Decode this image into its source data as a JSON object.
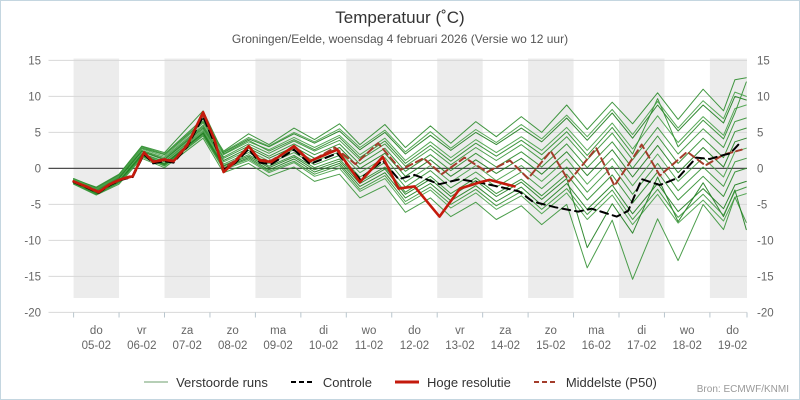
{
  "header": {
    "title": "Temperatuur (˚C)",
    "subtitle": "Groningen/Eelde, woensdag 4 februari 2026 (Versie wo 12 uur)"
  },
  "source_label": "Bron: ECMWF/KNMI",
  "legend": [
    {
      "label": "Verstoorde runs",
      "color": "#9dbf9d",
      "dash": "",
      "width": 1.5
    },
    {
      "label": "Controle",
      "color": "#000000",
      "dash": "5 3",
      "width": 2
    },
    {
      "label": "Hoge resolutie",
      "color": "#c41a0c",
      "dash": "",
      "width": 3
    },
    {
      "label": "Middelste (P50)",
      "color": "#a33d2b",
      "dash": "5 3",
      "width": 2
    }
  ],
  "chart_data": {
    "type": "line",
    "title": "Temperatuur (˚C)",
    "ylabel": "°C",
    "ylim": [
      -20,
      15
    ],
    "y_ticks": [
      15,
      10,
      5,
      0,
      -5,
      -10,
      -15,
      -20
    ],
    "grid": true,
    "legend_position": "bottom",
    "x_unit": "days, 0 = 2026-02-05 00:00",
    "x_categories": [
      {
        "dow": "do",
        "date": "05-02"
      },
      {
        "dow": "vr",
        "date": "06-02"
      },
      {
        "dow": "za",
        "date": "07-02"
      },
      {
        "dow": "zo",
        "date": "08-02"
      },
      {
        "dow": "ma",
        "date": "09-02"
      },
      {
        "dow": "di",
        "date": "10-02"
      },
      {
        "dow": "wo",
        "date": "11-02"
      },
      {
        "dow": "do",
        "date": "12-02"
      },
      {
        "dow": "vr",
        "date": "13-02"
      },
      {
        "dow": "za",
        "date": "14-02"
      },
      {
        "dow": "zo",
        "date": "15-02"
      },
      {
        "dow": "ma",
        "date": "16-02"
      },
      {
        "dow": "di",
        "date": "17-02"
      },
      {
        "dow": "wo",
        "date": "18-02"
      },
      {
        "dow": "do",
        "date": "19-02"
      }
    ],
    "series": {
      "hoge_resolutie": {
        "name": "Hoge resolutie",
        "color": "#c41a0c",
        "width": 2.6,
        "dash": "",
        "points": [
          [
            0,
            -1.8
          ],
          [
            0.3,
            -2.6
          ],
          [
            0.55,
            -3.3
          ],
          [
            0.8,
            -2.2
          ],
          [
            1.05,
            -1.5
          ],
          [
            1.3,
            -1.1
          ],
          [
            1.55,
            2.2
          ],
          [
            1.75,
            0.9
          ],
          [
            2.0,
            1.2
          ],
          [
            2.2,
            1.0
          ],
          [
            2.5,
            3.2
          ],
          [
            2.85,
            7.8
          ],
          [
            3.1,
            4.0
          ],
          [
            3.3,
            -0.5
          ],
          [
            3.55,
            0.9
          ],
          [
            3.85,
            3.1
          ],
          [
            4.1,
            1.1
          ],
          [
            4.35,
            0.9
          ],
          [
            4.85,
            3.1
          ],
          [
            5.2,
            1.0
          ],
          [
            5.8,
            2.6
          ],
          [
            6.3,
            -1.9
          ],
          [
            6.8,
            1.6
          ],
          [
            7.15,
            -2.8
          ],
          [
            7.5,
            -2.5
          ],
          [
            8.05,
            -6.7
          ],
          [
            8.5,
            -2.8
          ],
          [
            8.95,
            -1.9
          ],
          [
            9.15,
            -1.6
          ],
          [
            9.7,
            -2.5
          ]
        ]
      },
      "controle": {
        "name": "Controle",
        "color": "#000000",
        "width": 2,
        "dash": "8 5",
        "points": [
          [
            0,
            -1.9
          ],
          [
            0.3,
            -2.7
          ],
          [
            0.55,
            -3.4
          ],
          [
            0.8,
            -2.3
          ],
          [
            1.05,
            -1.6
          ],
          [
            1.3,
            -1.2
          ],
          [
            1.55,
            2.0
          ],
          [
            1.75,
            0.7
          ],
          [
            2.0,
            1.0
          ],
          [
            2.2,
            0.8
          ],
          [
            2.5,
            3.0
          ],
          [
            2.85,
            7.2
          ],
          [
            3.1,
            3.5
          ],
          [
            3.3,
            -0.2
          ],
          [
            3.55,
            0.7
          ],
          [
            3.85,
            2.7
          ],
          [
            4.1,
            0.8
          ],
          [
            4.35,
            0.6
          ],
          [
            4.85,
            2.6
          ],
          [
            5.2,
            0.6
          ],
          [
            5.8,
            2.1
          ],
          [
            6.3,
            -1.5
          ],
          [
            6.8,
            1.1
          ],
          [
            7.15,
            -1.5
          ],
          [
            7.5,
            -0.9
          ],
          [
            8.05,
            -2.2
          ],
          [
            8.5,
            -1.5
          ],
          [
            8.95,
            -2.0
          ],
          [
            9.4,
            -2.6
          ],
          [
            9.8,
            -3.2
          ],
          [
            10.1,
            -4.6
          ],
          [
            10.6,
            -5.4
          ],
          [
            11.1,
            -6.0
          ],
          [
            11.4,
            -5.6
          ],
          [
            11.7,
            -6.2
          ],
          [
            11.95,
            -6.7
          ],
          [
            12.2,
            -5.9
          ],
          [
            12.5,
            -1.5
          ],
          [
            12.9,
            -2.3
          ],
          [
            13.3,
            -1.3
          ],
          [
            13.7,
            1.5
          ],
          [
            14.0,
            1.3
          ],
          [
            14.2,
            1.7
          ],
          [
            14.45,
            2.1
          ],
          [
            14.7,
            3.8
          ]
        ]
      },
      "middelste_p50": {
        "name": "Middelste (P50)",
        "color": "#a33d2b",
        "width": 2,
        "dash": "7 4",
        "points": [
          [
            0,
            -1.8
          ],
          [
            0.3,
            -2.5
          ],
          [
            0.55,
            -3.2
          ],
          [
            0.8,
            -2.1
          ],
          [
            1.05,
            -1.4
          ],
          [
            1.3,
            -1.0
          ],
          [
            1.55,
            2.3
          ],
          [
            1.75,
            1.0
          ],
          [
            2.0,
            1.3
          ],
          [
            2.2,
            1.1
          ],
          [
            2.5,
            3.4
          ],
          [
            2.85,
            7.4
          ],
          [
            3.1,
            3.8
          ],
          [
            3.3,
            0.0
          ],
          [
            3.55,
            1.1
          ],
          [
            3.85,
            3.0
          ],
          [
            4.1,
            1.2
          ],
          [
            4.35,
            1.1
          ],
          [
            4.85,
            2.9
          ],
          [
            5.2,
            0.9
          ],
          [
            5.75,
            2.9
          ],
          [
            6.2,
            0.6
          ],
          [
            6.7,
            3.5
          ],
          [
            7.2,
            -0.2
          ],
          [
            7.7,
            1.4
          ],
          [
            8.1,
            -0.8
          ],
          [
            8.6,
            1.5
          ],
          [
            9.1,
            -0.5
          ],
          [
            9.6,
            1.1
          ],
          [
            10.0,
            -1.4
          ],
          [
            10.5,
            2.4
          ],
          [
            10.9,
            -1.8
          ],
          [
            11.5,
            2.8
          ],
          [
            11.9,
            -2.4
          ],
          [
            12.5,
            3.3
          ],
          [
            12.9,
            -1.0
          ],
          [
            13.5,
            2.3
          ],
          [
            13.9,
            0.4
          ],
          [
            14.3,
            1.9
          ],
          [
            14.7,
            2.6
          ]
        ]
      },
      "verstoorde_runs": {
        "name": "Verstoorde runs",
        "colors": [
          "#2c8c2c",
          "#1e7d1e",
          "#47a147",
          "#379337"
        ],
        "width": 1,
        "days": [
          0,
          0.5,
          1.0,
          1.5,
          2.0,
          2.85,
          3.3,
          3.85,
          4.3,
          4.85,
          5.3,
          5.85,
          6.3,
          6.85,
          7.3,
          7.85,
          8.3,
          8.85,
          9.3,
          9.85,
          10.3,
          10.85,
          11.3,
          11.85,
          12.3,
          12.85,
          13.3,
          13.85,
          14.3,
          14.55,
          14.8
        ],
        "members": [
          [
            -1.4,
            -2.7,
            -0.9,
            3.0,
            2.0,
            6.9,
            2.4,
            4.8,
            3.3,
            5.6,
            4.0,
            6.2,
            3.3,
            6.1,
            2.9,
            5.9,
            3.5,
            6.5,
            4.4,
            7.2,
            5.0,
            8.8,
            5.4,
            9.2,
            6.2,
            10.5,
            6.8,
            11.0,
            8.0,
            12.3,
            12.6
          ],
          [
            -1.5,
            -2.8,
            -1.0,
            2.8,
            1.9,
            6.5,
            2.2,
            4.1,
            3.0,
            4.8,
            3.5,
            5.2,
            2.6,
            5.0,
            2.0,
            4.6,
            2.5,
            5.0,
            3.3,
            5.6,
            3.7,
            7.0,
            3.9,
            7.7,
            4.2,
            8.8,
            5.2,
            8.8,
            6.3,
            10.0,
            9.5
          ],
          [
            -1.6,
            -2.9,
            -1.1,
            2.7,
            1.7,
            6.3,
            1.9,
            3.7,
            2.6,
            4.3,
            2.9,
            4.6,
            1.9,
            4.2,
            1.1,
            3.7,
            1.5,
            4.0,
            2.2,
            4.4,
            2.5,
            5.7,
            2.5,
            6.3,
            2.7,
            7.3,
            3.6,
            7.2,
            4.6,
            8.3,
            8.8
          ],
          [
            -1.7,
            -3.0,
            -1.2,
            2.5,
            1.5,
            6.0,
            1.6,
            3.4,
            2.1,
            3.8,
            2.4,
            3.9,
            1.2,
            3.4,
            0.3,
            2.7,
            0.5,
            2.9,
            1.1,
            3.3,
            1.2,
            4.4,
            1.2,
            4.9,
            1.2,
            5.7,
            2.0,
            5.5,
            2.9,
            6.5,
            7.0
          ],
          [
            -1.7,
            -3.1,
            -1.3,
            2.4,
            1.3,
            5.8,
            1.4,
            3.1,
            1.7,
            3.4,
            1.9,
            3.4,
            0.6,
            2.8,
            -0.4,
            1.9,
            -0.3,
            2.1,
            0.2,
            2.3,
            0.2,
            3.4,
            0.1,
            3.7,
            0.0,
            4.5,
            0.7,
            4.2,
            1.5,
            5.1,
            5.6
          ],
          [
            -1.8,
            -3.2,
            -1.4,
            2.3,
            1.2,
            5.6,
            1.1,
            2.8,
            1.4,
            3.0,
            1.4,
            2.9,
            0.0,
            2.1,
            -1.1,
            1.2,
            -1.1,
            1.2,
            -0.7,
            1.4,
            -0.8,
            2.3,
            -1.0,
            2.6,
            -1.2,
            3.2,
            -0.6,
            2.9,
            0.2,
            3.7,
            4.2
          ],
          [
            -1.8,
            -3.2,
            -1.6,
            2.1,
            1.0,
            5.4,
            0.9,
            2.5,
            1.0,
            2.6,
            1.0,
            2.3,
            -0.6,
            1.5,
            -1.9,
            0.4,
            -1.9,
            0.4,
            -1.7,
            0.4,
            -1.8,
            1.3,
            -2.2,
            1.4,
            -2.4,
            2.0,
            -1.8,
            1.5,
            -1.2,
            2.3,
            2.8
          ],
          [
            -1.9,
            -3.3,
            -1.7,
            2.0,
            0.9,
            5.2,
            0.6,
            2.2,
            0.7,
            2.2,
            0.5,
            1.8,
            -1.2,
            0.8,
            -2.6,
            -0.3,
            -2.7,
            -0.5,
            -2.6,
            -0.5,
            -2.8,
            0.2,
            -3.3,
            0.3,
            -3.6,
            0.7,
            -3.1,
            0.2,
            -2.5,
            0.9,
            1.4
          ],
          [
            -2.0,
            -3.4,
            -1.8,
            1.9,
            0.7,
            5.0,
            0.4,
            1.9,
            0.3,
            1.8,
            0.1,
            1.3,
            -1.8,
            0.2,
            -3.3,
            -1.1,
            -3.5,
            -1.3,
            -3.5,
            -1.5,
            -3.8,
            -0.8,
            -4.4,
            -0.9,
            -4.8,
            -0.5,
            -4.4,
            -1.1,
            -3.9,
            -0.5,
            0.0
          ],
          [
            -2.0,
            -3.5,
            -1.9,
            1.8,
            0.5,
            4.8,
            0.1,
            1.5,
            -0.2,
            1.3,
            -0.5,
            0.7,
            -2.5,
            -0.6,
            -4.1,
            -2.1,
            -4.5,
            -2.4,
            -4.6,
            -2.6,
            -5.1,
            -2.1,
            -5.7,
            -2.3,
            -6.3,
            -2.1,
            -6.0,
            -2.8,
            -5.6,
            -2.3,
            -1.8
          ],
          [
            -2.1,
            -3.6,
            -2.0,
            1.6,
            0.3,
            4.5,
            -0.2,
            1.1,
            -0.6,
            0.8,
            -1.1,
            0.0,
            -3.2,
            -1.4,
            -5.0,
            -3.0,
            -5.5,
            -3.4,
            -5.7,
            -3.8,
            -6.3,
            -3.4,
            -7.1,
            -3.7,
            -7.8,
            -3.6,
            -7.6,
            -4.4,
            -7.3,
            -4.0,
            -3.5
          ],
          [
            -2.2,
            -3.7,
            -2.2,
            1.4,
            0.1,
            4.2,
            -0.6,
            0.7,
            -1.1,
            0.2,
            -1.8,
            -0.8,
            -4.1,
            -2.4,
            -6.1,
            -4.1,
            -6.7,
            -4.7,
            -7.1,
            -5.2,
            -7.8,
            -5.0,
            -13.8,
            -7.2,
            -15.4,
            -7.0,
            -12.8,
            -5.0,
            -8.5,
            -4.0,
            -7.5
          ],
          [
            -1.5,
            -2.6,
            -0.8,
            3.1,
            2.2,
            8.0,
            2.0,
            3.9,
            2.4,
            4.0,
            2.6,
            4.3,
            1.5,
            3.8,
            0.7,
            3.2,
            1.0,
            3.5,
            1.7,
            3.9,
            1.9,
            5.1,
            1.8,
            5.7,
            2.0,
            9.7,
            3.0,
            6.7,
            4.1,
            7.7,
            12.0
          ],
          [
            -1.9,
            -3.4,
            -1.8,
            1.8,
            0.6,
            4.9,
            0.3,
            1.7,
            0.1,
            1.6,
            -0.2,
            1.0,
            -2.1,
            -0.1,
            -3.6,
            -1.5,
            -3.9,
            -1.7,
            -3.9,
            -1.9,
            -4.3,
            -1.4,
            -11.0,
            -4.9,
            -9.0,
            -1.2,
            -7.4,
            -2.0,
            -6.7,
            -3.0,
            -8.5
          ],
          [
            -1.5,
            -2.8,
            -1.0,
            2.9,
            2.0,
            6.6,
            2.3,
            4.3,
            3.1,
            5.0,
            3.7,
            5.5,
            2.9,
            5.3,
            2.3,
            5.1,
            2.8,
            5.4,
            3.6,
            6.1,
            4.1,
            7.4,
            4.4,
            8.2,
            4.7,
            9.3,
            5.6,
            9.4,
            6.9,
            10.6,
            10.0
          ],
          [
            -2.1,
            -3.6,
            -2.0,
            1.7,
            0.4,
            4.6,
            0.0,
            1.3,
            -0.4,
            1.0,
            -0.8,
            0.4,
            -2.9,
            -1.0,
            -4.6,
            -2.6,
            -5.0,
            -2.9,
            -5.2,
            -3.2,
            -5.7,
            -2.8,
            -6.4,
            -3.0,
            -7.1,
            -2.9,
            -6.8,
            -3.6,
            -6.5,
            -3.2,
            -2.6
          ]
        ]
      }
    }
  },
  "style": {
    "band_fill": "#ececec",
    "grid_color": "#d8d8d8",
    "zero_line_color": "#4d4d4d",
    "axis_text_color": "#666666",
    "tick_color": "#b9c6ce"
  }
}
